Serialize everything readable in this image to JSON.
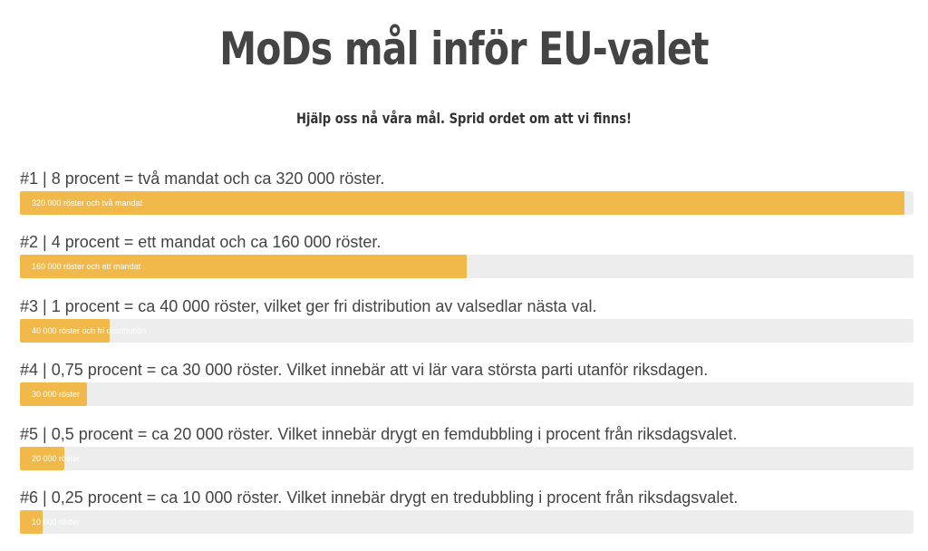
{
  "header": {
    "title": "MoDs mål inför EU-valet",
    "subtitle": "Hjälp oss nå våra mål. Sprid ordet om att vi finns!"
  },
  "goals": [
    {
      "heading": "#1 | 8 procent = två mandat och ca 320 000 röster.",
      "bar_label": "320 000 röster och två mandat",
      "progress": 0.99
    },
    {
      "heading": "#2 | 4 procent = ett mandat och ca 160 000 röster.",
      "bar_label": "160 000 röster och ett mandat",
      "progress": 0.5
    },
    {
      "heading": "#3 | 1 procent = ca 40 000 röster, vilket ger fri distribution av valsedlar nästa val.",
      "bar_label": "40 000 röster och fri distribution",
      "progress": 0.1
    },
    {
      "heading": "#4 | 0,75 procent = ca 30 000 röster. Vilket innebär att vi lär vara största parti utanför riksdagen.",
      "bar_label": "30 000 röster",
      "progress": 0.075
    },
    {
      "heading": "#5 | 0,5 procent = ca 20 000 röster. Vilket innebär drygt en femdubbling i procent från riksdagsvalet.",
      "bar_label": "20 000 röster",
      "progress": 0.05
    },
    {
      "heading": "#6 | 0,25 procent = ca 10 000 röster. Vilket innebär drygt en tredubbling i procent från riksdagsvalet.",
      "bar_label": "10 000 röster",
      "progress": 0.025
    }
  ],
  "colors": {
    "bar_fill": "#f0b94a",
    "bar_track": "#ededed",
    "text": "#444444"
  }
}
